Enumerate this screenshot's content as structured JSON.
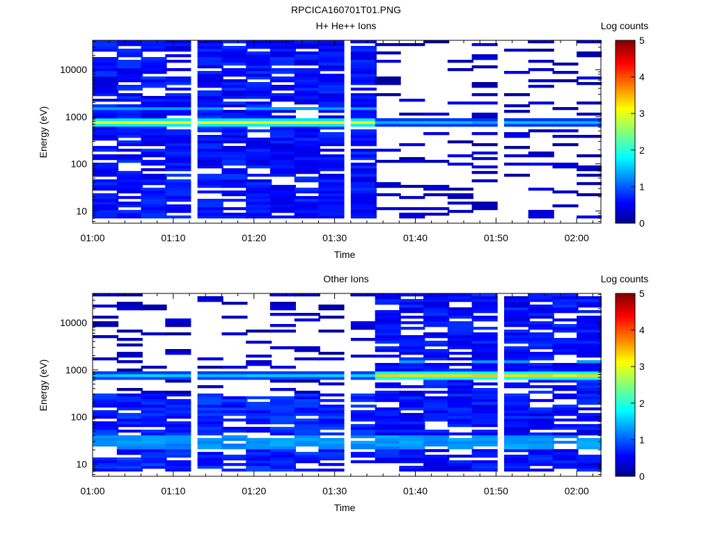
{
  "figure": {
    "title": "RPCICA160701T01.PNG"
  },
  "colorbar": {
    "label": "Log counts",
    "min": 0,
    "max": 5,
    "ticks": [
      "0",
      "1",
      "2",
      "3",
      "4",
      "5"
    ],
    "colormap": "jet"
  },
  "chart_data": [
    {
      "type": "heatmap",
      "title": "H+ He++ Ions",
      "xlabel": "Time",
      "ylabel": "Energy (eV)",
      "y_scale": "log",
      "xlim": [
        "01:00",
        "02:03"
      ],
      "ylim": [
        5.5,
        42000
      ],
      "x_ticks": [
        "01:00",
        "01:10",
        "01:20",
        "01:30",
        "01:40",
        "01:50",
        "02:00"
      ],
      "y_ticks": [
        "10",
        "100",
        "1000",
        "10000"
      ],
      "time_bins": [
        "01:00",
        "01:03",
        "01:06",
        "01:09",
        "01:13",
        "01:16",
        "01:19",
        "01:22",
        "01:25",
        "01:28",
        "01:32",
        "01:35",
        "01:38",
        "01:41",
        "01:44",
        "01:47",
        "01:51",
        "01:54",
        "01:57",
        "02:00"
      ],
      "color_range": [
        0,
        5
      ],
      "band_peak": {
        "energy_eV": 750,
        "peak_log_counts_before_0135": 3.2,
        "peak_log_counts_after_0135": 1.6
      },
      "note_regions": [
        {
          "from": "01:00",
          "to": "01:35",
          "description": "dense counts 10 eV–40 keV"
        },
        {
          "from": "01:35",
          "to": "02:03",
          "description": "sparse counts, band near 700–800 eV"
        }
      ]
    },
    {
      "type": "heatmap",
      "title": "Other Ions",
      "xlabel": "Time",
      "ylabel": "Energy (eV)",
      "y_scale": "log",
      "xlim": [
        "01:00",
        "02:03"
      ],
      "ylim": [
        5.5,
        42000
      ],
      "x_ticks": [
        "01:00",
        "01:10",
        "01:20",
        "01:30",
        "01:40",
        "01:50",
        "02:00"
      ],
      "y_ticks": [
        "10",
        "100",
        "1000",
        "10000"
      ],
      "time_bins": [
        "01:00",
        "01:03",
        "01:06",
        "01:09",
        "01:13",
        "01:16",
        "01:19",
        "01:22",
        "01:25",
        "01:28",
        "01:32",
        "01:35",
        "01:38",
        "01:41",
        "01:44",
        "01:47",
        "01:51",
        "01:54",
        "01:57",
        "02:00"
      ],
      "color_range": [
        0,
        5
      ],
      "band_peak": {
        "energy_eV": 750,
        "peak_log_counts_before_0135": 1.7,
        "peak_log_counts_after_0135": 3.4
      },
      "note_regions": [
        {
          "from": "01:00",
          "to": "01:35",
          "description": "sparse above 500 eV, dense below 300 eV"
        },
        {
          "from": "01:35",
          "to": "02:03",
          "description": "dense counts 10 eV–40 keV"
        }
      ]
    }
  ]
}
